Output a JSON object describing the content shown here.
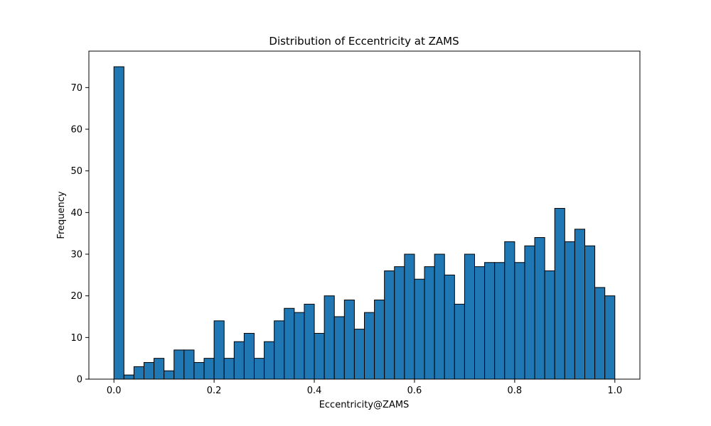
{
  "chart_data": {
    "type": "bar",
    "title": "Distribution of Eccentricity at ZAMS",
    "xlabel": "Eccentricity@ZAMS",
    "ylabel": "Frequency",
    "bin_start": 0.0,
    "bin_end": 1.0,
    "bin_count": 50,
    "values": [
      75,
      1,
      3,
      4,
      5,
      2,
      7,
      7,
      4,
      5,
      14,
      5,
      9,
      11,
      5,
      9,
      14,
      17,
      16,
      18,
      11,
      20,
      15,
      19,
      12,
      16,
      19,
      26,
      27,
      30,
      24,
      27,
      30,
      25,
      18,
      30,
      27,
      28,
      28,
      33,
      28,
      32,
      34,
      26,
      41,
      33,
      36,
      32,
      22,
      20
    ],
    "xlim": [
      -0.05,
      1.05
    ],
    "ylim": [
      0,
      78.75
    ],
    "x_ticks": [
      0.0,
      0.2,
      0.4,
      0.6,
      0.8,
      1.0
    ],
    "x_tick_labels": [
      "0.0",
      "0.2",
      "0.4",
      "0.6",
      "0.8",
      "1.0"
    ],
    "y_ticks": [
      0,
      10,
      20,
      30,
      40,
      50,
      60,
      70
    ],
    "y_tick_labels": [
      "0",
      "10",
      "20",
      "30",
      "40",
      "50",
      "60",
      "70"
    ],
    "grid": false,
    "legend": "none",
    "bar_color": "#1f77b4",
    "edge_color": "#000000"
  }
}
